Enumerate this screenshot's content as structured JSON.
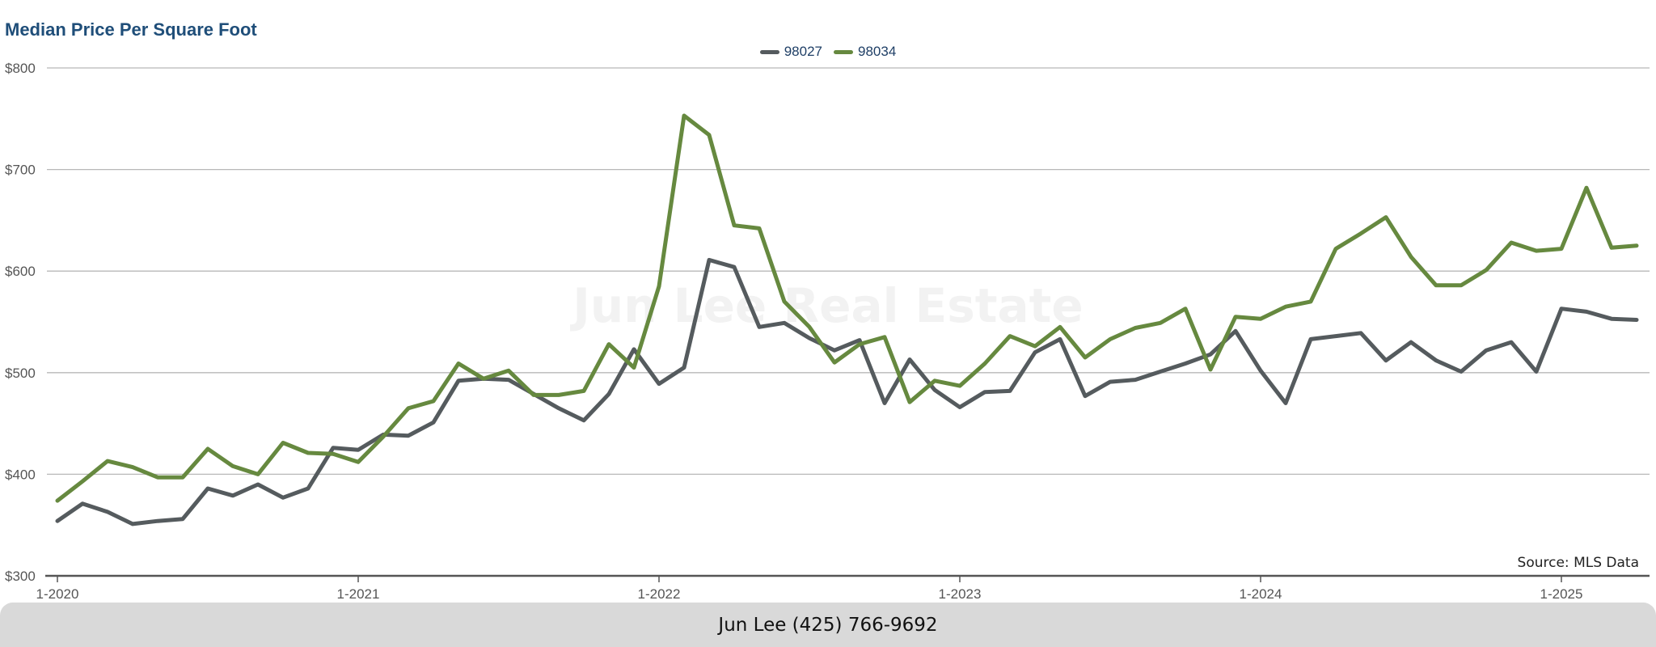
{
  "chart_data": {
    "type": "line",
    "title": "Median Price Per Square Foot",
    "xlabel": "",
    "ylabel": "",
    "ylim": [
      300,
      800
    ],
    "yticks": [
      "$300",
      "$400",
      "$500",
      "$600",
      "$700",
      "$800"
    ],
    "xticks": [
      "1-2020",
      "1-2021",
      "1-2022",
      "1-2023",
      "1-2024",
      "1-2025"
    ],
    "grid": true,
    "legend": "top-center",
    "x": [
      "1-2020",
      "2-2020",
      "3-2020",
      "4-2020",
      "5-2020",
      "6-2020",
      "7-2020",
      "8-2020",
      "9-2020",
      "10-2020",
      "11-2020",
      "12-2020",
      "1-2021",
      "2-2021",
      "3-2021",
      "4-2021",
      "5-2021",
      "6-2021",
      "7-2021",
      "8-2021",
      "9-2021",
      "10-2021",
      "11-2021",
      "12-2021",
      "1-2022",
      "2-2022",
      "3-2022",
      "4-2022",
      "5-2022",
      "6-2022",
      "7-2022",
      "8-2022",
      "9-2022",
      "10-2022",
      "11-2022",
      "12-2022",
      "1-2023",
      "2-2023",
      "3-2023",
      "4-2023",
      "5-2023",
      "6-2023",
      "7-2023",
      "8-2023",
      "9-2023",
      "10-2023",
      "11-2023",
      "12-2023",
      "1-2024",
      "2-2024",
      "3-2024",
      "4-2024",
      "5-2024",
      "6-2024",
      "7-2024",
      "8-2024",
      "9-2024",
      "10-2024",
      "11-2024",
      "12-2024",
      "1-2025",
      "2-2025",
      "3-2025",
      "4-2025"
    ],
    "series": [
      {
        "name": "98027",
        "color": "#555b5e",
        "values": [
          354,
          371,
          363,
          351,
          354,
          356,
          386,
          379,
          390,
          377,
          386,
          426,
          424,
          439,
          438,
          451,
          492,
          494,
          493,
          479,
          465,
          453,
          479,
          523,
          489,
          505,
          611,
          604,
          545,
          549,
          534,
          522,
          532,
          470,
          513,
          483,
          466,
          481,
          482,
          520,
          533,
          477,
          491,
          493,
          501,
          509,
          518,
          541,
          502,
          470,
          533,
          536,
          539,
          512,
          530,
          512,
          501,
          522,
          530,
          501,
          563,
          560,
          553,
          552
        ]
      },
      {
        "name": "98034",
        "color": "#66893f",
        "values": [
          374,
          393,
          413,
          407,
          397,
          397,
          425,
          408,
          400,
          431,
          421,
          420,
          412,
          437,
          465,
          472,
          509,
          494,
          502,
          478,
          478,
          482,
          528,
          505,
          585,
          753,
          734,
          645,
          642,
          570,
          545,
          510,
          528,
          535,
          471,
          492,
          487,
          509,
          536,
          526,
          545,
          515,
          533,
          544,
          549,
          563,
          503,
          555,
          553,
          565,
          570,
          622,
          637,
          653,
          614,
          586,
          586,
          601,
          628,
          620,
          622,
          682,
          623,
          625
        ]
      }
    ],
    "annotations": [
      "Source: MLS Data"
    ]
  },
  "watermark": "Jun Lee Real Estate",
  "footer": {
    "text": "Jun Lee (425) 766-9692"
  }
}
